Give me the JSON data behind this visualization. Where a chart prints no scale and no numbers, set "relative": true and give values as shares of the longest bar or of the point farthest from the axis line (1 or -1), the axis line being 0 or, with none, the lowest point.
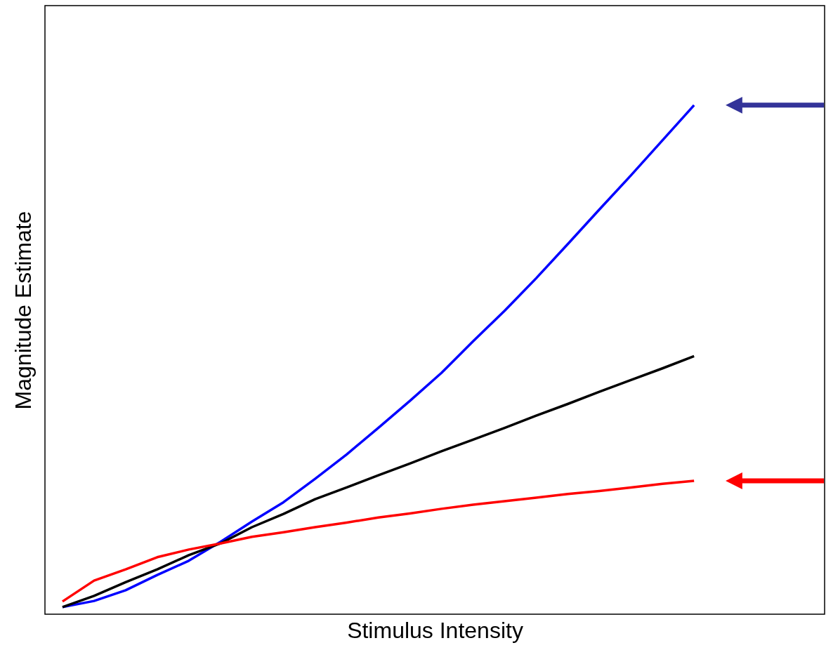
{
  "chart_data": {
    "type": "line",
    "relative": true,
    "xlabel": "Stimulus Intensity",
    "ylabel": "Magnitude Estimate",
    "categories": [
      null,
      null,
      null,
      null,
      null,
      null,
      null,
      null,
      null,
      null,
      null,
      null,
      null,
      null,
      null,
      null,
      null,
      null,
      null,
      null,
      null
    ],
    "grid": false,
    "marker": "none",
    "line_style": "solid",
    "series": [
      {
        "color": "#0000ff",
        "values": [
          0.014,
          0.026,
          0.047,
          0.077,
          0.105,
          0.142,
          0.182,
          0.22,
          0.266,
          0.314,
          0.366,
          0.419,
          0.474,
          0.536,
          0.596,
          0.66,
          0.727,
          0.795,
          0.862,
          0.931,
          1.0
        ]
      },
      {
        "color": "#000000",
        "values": [
          0.014,
          0.036,
          0.063,
          0.088,
          0.116,
          0.139,
          0.171,
          0.197,
          0.226,
          0.249,
          0.273,
          0.296,
          0.32,
          0.343,
          0.366,
          0.39,
          0.413,
          0.437,
          0.46,
          0.483,
          0.507
        ]
      },
      {
        "color": "#ff0000",
        "values": [
          0.025,
          0.066,
          0.088,
          0.112,
          0.127,
          0.139,
          0.152,
          0.161,
          0.171,
          0.18,
          0.19,
          0.198,
          0.207,
          0.215,
          0.222,
          0.229,
          0.236,
          0.242,
          0.249,
          0.256,
          0.262
        ]
      }
    ]
  }
}
